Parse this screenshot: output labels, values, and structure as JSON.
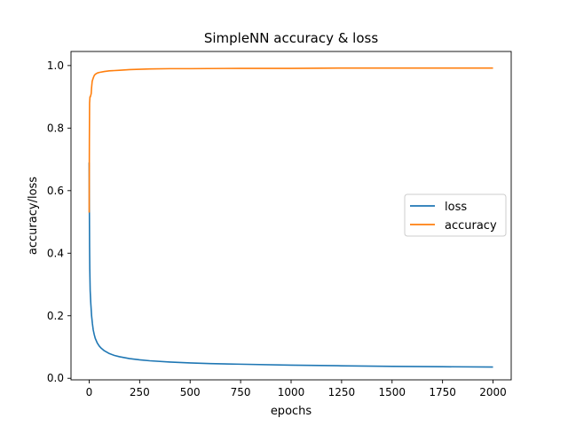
{
  "chart_data": {
    "type": "line",
    "title": "SimpleNN accuracy & loss",
    "xlabel": "epochs",
    "ylabel": "accuracy/loss",
    "xlim": [
      -90,
      2090
    ],
    "ylim": [
      -0.005,
      1.045
    ],
    "xticks": [
      0,
      250,
      500,
      750,
      1000,
      1250,
      1500,
      1750,
      2000
    ],
    "yticks": [
      0.0,
      0.2,
      0.4,
      0.6,
      0.8,
      1.0
    ],
    "xtick_labels": [
      "0",
      "250",
      "500",
      "750",
      "1000",
      "1250",
      "1500",
      "1750",
      "2000"
    ],
    "ytick_labels": [
      "0.0",
      "0.2",
      "0.4",
      "0.6",
      "0.8",
      "1.0"
    ],
    "grid": false,
    "legend_position": "center-right",
    "series": [
      {
        "name": "loss",
        "color": "#1f77b4",
        "x": [
          0,
          1,
          2,
          3,
          5,
          8,
          12,
          16,
          20,
          25,
          30,
          40,
          50,
          60,
          75,
          100,
          125,
          150,
          200,
          250,
          300,
          400,
          500,
          600,
          750,
          1000,
          1250,
          1500,
          1750,
          2000
        ],
        "y": [
          0.69,
          0.55,
          0.42,
          0.35,
          0.28,
          0.24,
          0.2,
          0.175,
          0.155,
          0.14,
          0.128,
          0.113,
          0.103,
          0.096,
          0.088,
          0.079,
          0.073,
          0.069,
          0.063,
          0.059,
          0.056,
          0.052,
          0.049,
          0.047,
          0.045,
          0.042,
          0.04,
          0.038,
          0.037,
          0.036
        ]
      },
      {
        "name": "accuracy",
        "color": "#ff7f0e",
        "x": [
          0,
          1,
          2,
          4,
          6,
          8,
          10,
          12,
          15,
          20,
          25,
          30,
          40,
          50,
          75,
          100,
          150,
          200,
          250,
          300,
          400,
          500,
          750,
          1000,
          1250,
          1500,
          1750,
          2000
        ],
        "y": [
          0.53,
          0.76,
          0.88,
          0.9,
          0.9,
          0.905,
          0.91,
          0.93,
          0.95,
          0.96,
          0.968,
          0.972,
          0.976,
          0.978,
          0.981,
          0.983,
          0.985,
          0.987,
          0.988,
          0.989,
          0.99,
          0.99,
          0.991,
          0.991,
          0.992,
          0.992,
          0.992,
          0.992
        ]
      }
    ]
  }
}
